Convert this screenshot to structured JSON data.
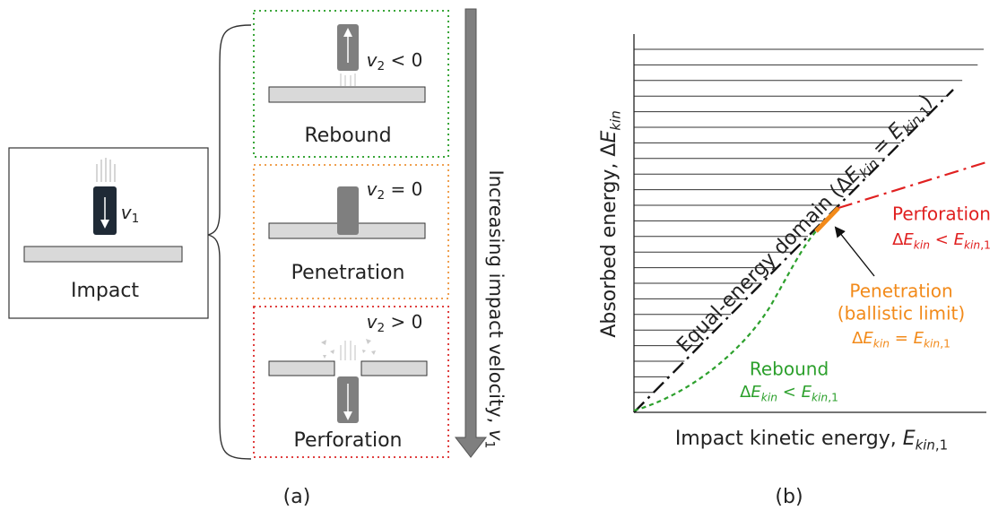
{
  "panel_a": {
    "caption": "(a)",
    "impact": {
      "label": "Impact",
      "velocity": [
        {
          "text": "v",
          "italic": true
        },
        {
          "text": "1",
          "sub": true
        }
      ]
    },
    "outcomes": [
      {
        "label": "Rebound",
        "condition": [
          {
            "text": "v",
            "italic": true
          },
          {
            "text": "2",
            "sub": true
          },
          {
            "text": " < 0"
          }
        ]
      },
      {
        "label": "Penetration",
        "condition": [
          {
            "text": "v",
            "italic": true
          },
          {
            "text": "2",
            "sub": true
          },
          {
            "text": " = 0"
          }
        ]
      },
      {
        "label": "Perforation",
        "condition": [
          {
            "text": "v",
            "italic": true
          },
          {
            "text": "2",
            "sub": true
          },
          {
            "text": " > 0"
          }
        ]
      }
    ],
    "arrow_label": [
      {
        "text": "Increasing impact velocity, "
      },
      {
        "text": "v",
        "italic": true
      },
      {
        "text": "1",
        "sub": true
      }
    ]
  },
  "panel_b": {
    "caption": "(b)",
    "x_label": [
      {
        "text": "Impact kinetic energy, "
      },
      {
        "text": "E",
        "italic": true
      },
      {
        "text": "kin",
        "sub": true,
        "italic": true
      },
      {
        "text": ",1",
        "sub": true
      }
    ],
    "y_label": [
      {
        "text": "Absorbed energy, "
      },
      {
        "text": "Δ"
      },
      {
        "text": "E",
        "italic": true
      },
      {
        "text": "kin",
        "sub": true,
        "italic": true
      }
    ],
    "domain_label": [
      {
        "text": "Equal-energy domain ("
      },
      {
        "text": "Δ"
      },
      {
        "text": "E",
        "italic": true
      },
      {
        "text": "kin",
        "sub": true,
        "italic": true
      },
      {
        "text": " = "
      },
      {
        "text": "E",
        "italic": true
      },
      {
        "text": "kin",
        "sub": true,
        "italic": true
      },
      {
        "text": ",1",
        "sub": true
      },
      {
        "text": ")"
      }
    ],
    "regions": [
      {
        "name": "Perforation",
        "relation": [
          {
            "text": "Δ"
          },
          {
            "text": "E",
            "italic": true
          },
          {
            "text": "kin",
            "sub": true,
            "italic": true
          },
          {
            "text": " < "
          },
          {
            "text": "E",
            "italic": true
          },
          {
            "text": "kin",
            "sub": true,
            "italic": true
          },
          {
            "text": ",1",
            "sub": true
          }
        ]
      },
      {
        "name": "Penetration",
        "note": "(ballistic limit)",
        "relation": [
          {
            "text": "Δ"
          },
          {
            "text": "E",
            "italic": true
          },
          {
            "text": "kin",
            "sub": true,
            "italic": true
          },
          {
            "text": " = "
          },
          {
            "text": "E",
            "italic": true
          },
          {
            "text": "kin",
            "sub": true,
            "italic": true
          },
          {
            "text": ",1",
            "sub": true
          }
        ]
      },
      {
        "name": "Rebound",
        "relation": [
          {
            "text": "Δ"
          },
          {
            "text": "E",
            "italic": true
          },
          {
            "text": "kin",
            "sub": true,
            "italic": true
          },
          {
            "text": " < "
          },
          {
            "text": "E",
            "italic": true
          },
          {
            "text": "kin",
            "sub": true,
            "italic": true
          },
          {
            "text": ",1",
            "sub": true
          }
        ]
      }
    ]
  }
}
